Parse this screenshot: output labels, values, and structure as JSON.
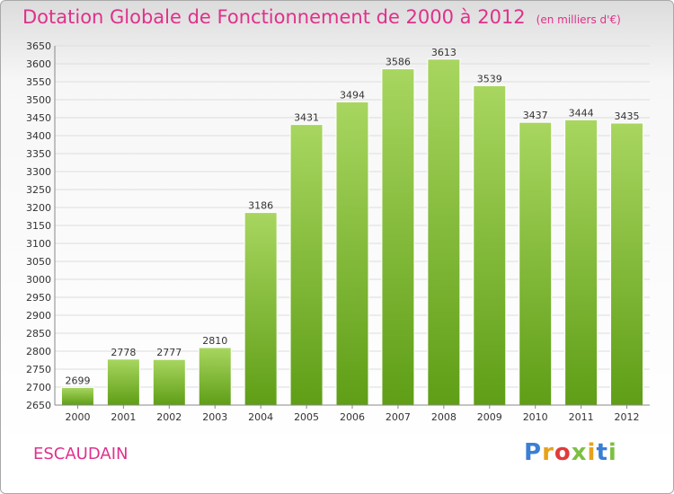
{
  "header": {
    "title": "Dotation Globale de Fonctionnement de 2000 à 2012",
    "unit": "(en milliers d'€)"
  },
  "footer": {
    "commune": "ESCAUDAIN",
    "brand_letters": [
      "P",
      "r",
      "o",
      "x",
      "i",
      "t",
      "i"
    ]
  },
  "colors": {
    "title": "#e0308b",
    "bar_top": "#a8d660",
    "bar_bottom": "#5f9e16",
    "brand": [
      "#3b7fd4",
      "#e7a21a",
      "#e03b3b",
      "#7cc043",
      "#e7a21a",
      "#3b7fd4",
      "#7cc043"
    ]
  },
  "chart_data": {
    "type": "bar",
    "title": "Dotation Globale de Fonctionnement de 2000 à 2012",
    "subtitle": "(en milliers d'€)",
    "categories": [
      "2000",
      "2001",
      "2002",
      "2003",
      "2004",
      "2005",
      "2006",
      "2007",
      "2008",
      "2009",
      "2010",
      "2011",
      "2012"
    ],
    "values": [
      2699,
      2778,
      2777,
      2810,
      3186,
      3431,
      3494,
      3586,
      3613,
      3539,
      3437,
      3444,
      3435
    ],
    "ylim": [
      2650,
      3650
    ],
    "yticks": [
      2650,
      2700,
      2750,
      2800,
      2850,
      2900,
      2950,
      3000,
      3050,
      3100,
      3150,
      3200,
      3250,
      3300,
      3350,
      3400,
      3450,
      3500,
      3550,
      3600,
      3650
    ],
    "xlabel": "",
    "ylabel": "",
    "grid": true
  }
}
